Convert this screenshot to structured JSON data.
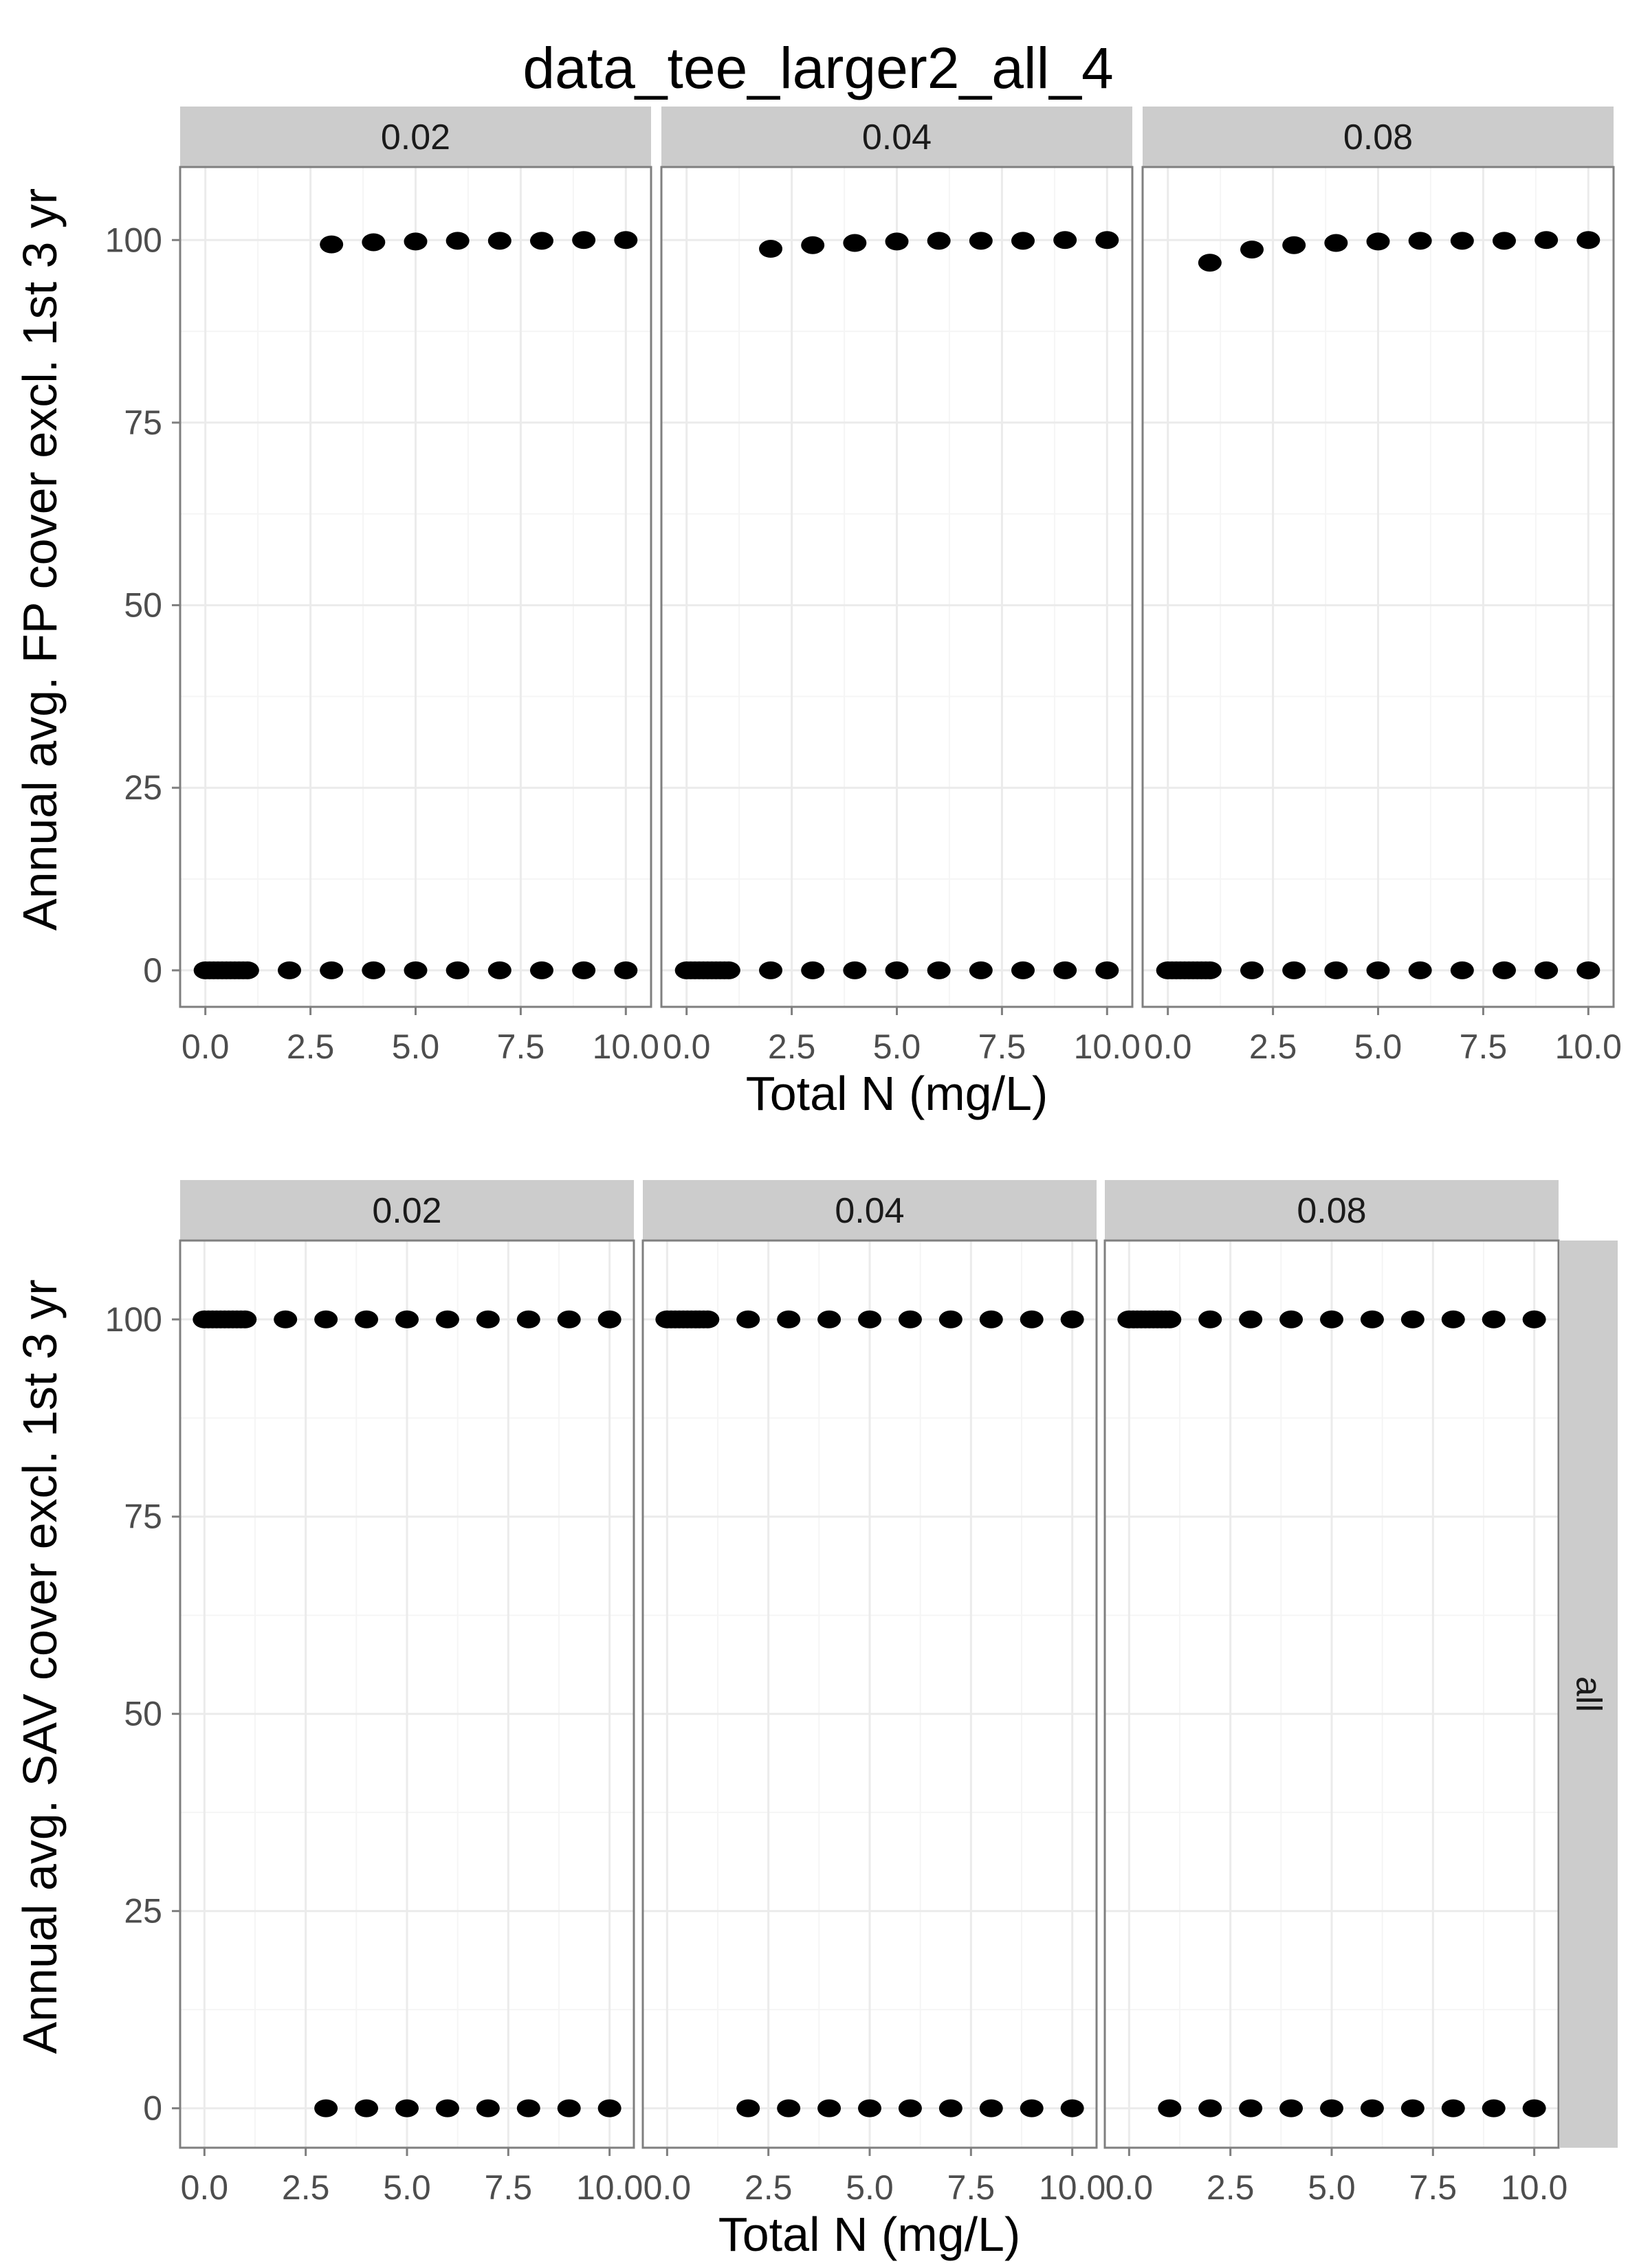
{
  "title": "data_tee_larger2_all_4",
  "colors": {
    "panel_bg": "#ffffff",
    "grid_major": "#ebebeb",
    "grid_minor": "#f5f5f5",
    "strip_bg": "#cccccc",
    "panel_border": "#7f7f7f",
    "point": "#000000",
    "tick_text": "#4d4d4d"
  },
  "chart_data": [
    {
      "type": "scatter",
      "title": "data_tee_larger2_all_4",
      "xlabel": "Total N (mg/L)",
      "ylabel": "Annual avg. FP cover excl. 1st 3 yr",
      "xlim": [
        -0.6,
        10.6
      ],
      "ylim": [
        -5,
        110
      ],
      "x_ticks": [
        "0.0",
        "2.5",
        "5.0",
        "7.5",
        "10.0"
      ],
      "x_tick_values": [
        0,
        2.5,
        5,
        7.5,
        10
      ],
      "y_ticks": [
        "0",
        "25",
        "50",
        "75",
        "100"
      ],
      "y_tick_values": [
        0,
        25,
        50,
        75,
        100
      ],
      "facets": [
        "0.02",
        "0.04",
        "0.08"
      ],
      "row_strip": "",
      "grid": true,
      "series": [
        {
          "facet": "0.02",
          "points": [
            [
              0,
              0
            ],
            [
              0.1,
              0
            ],
            [
              0.2,
              0
            ],
            [
              0.3,
              0
            ],
            [
              0.4,
              0
            ],
            [
              0.5,
              0
            ],
            [
              0.6,
              0
            ],
            [
              0.7,
              0
            ],
            [
              0.8,
              0
            ],
            [
              0.9,
              0
            ],
            [
              1,
              0
            ],
            [
              2,
              0
            ],
            [
              3,
              0
            ],
            [
              4,
              0
            ],
            [
              5,
              0
            ],
            [
              6,
              0
            ],
            [
              7,
              0
            ],
            [
              8,
              0
            ],
            [
              9,
              0
            ],
            [
              10,
              0
            ],
            [
              3,
              99.4
            ],
            [
              4,
              99.7
            ],
            [
              5,
              99.8
            ],
            [
              6,
              99.9
            ],
            [
              7,
              99.9
            ],
            [
              8,
              99.9
            ],
            [
              9,
              100
            ],
            [
              10,
              100
            ]
          ]
        },
        {
          "facet": "0.04",
          "points": [
            [
              0,
              0
            ],
            [
              0.1,
              0
            ],
            [
              0.2,
              0
            ],
            [
              0.3,
              0
            ],
            [
              0.4,
              0
            ],
            [
              0.5,
              0
            ],
            [
              0.6,
              0
            ],
            [
              0.7,
              0
            ],
            [
              0.8,
              0
            ],
            [
              0.9,
              0
            ],
            [
              1,
              0
            ],
            [
              2,
              0
            ],
            [
              3,
              0
            ],
            [
              4,
              0
            ],
            [
              5,
              0
            ],
            [
              6,
              0
            ],
            [
              7,
              0
            ],
            [
              8,
              0
            ],
            [
              9,
              0
            ],
            [
              10,
              0
            ],
            [
              2,
              98.8
            ],
            [
              3,
              99.3
            ],
            [
              4,
              99.6
            ],
            [
              5,
              99.8
            ],
            [
              6,
              99.9
            ],
            [
              7,
              99.9
            ],
            [
              8,
              99.9
            ],
            [
              9,
              100
            ],
            [
              10,
              100
            ]
          ]
        },
        {
          "facet": "0.08",
          "points": [
            [
              0,
              0
            ],
            [
              0.1,
              0
            ],
            [
              0.2,
              0
            ],
            [
              0.3,
              0
            ],
            [
              0.4,
              0
            ],
            [
              0.5,
              0
            ],
            [
              0.6,
              0
            ],
            [
              0.7,
              0
            ],
            [
              0.8,
              0
            ],
            [
              0.9,
              0
            ],
            [
              1,
              0
            ],
            [
              2,
              0
            ],
            [
              3,
              0
            ],
            [
              4,
              0
            ],
            [
              5,
              0
            ],
            [
              6,
              0
            ],
            [
              7,
              0
            ],
            [
              8,
              0
            ],
            [
              9,
              0
            ],
            [
              10,
              0
            ],
            [
              1,
              96.9
            ],
            [
              2,
              98.7
            ],
            [
              3,
              99.3
            ],
            [
              4,
              99.6
            ],
            [
              5,
              99.8
            ],
            [
              6,
              99.9
            ],
            [
              7,
              99.9
            ],
            [
              8,
              99.9
            ],
            [
              9,
              100
            ],
            [
              10,
              100
            ]
          ]
        }
      ]
    },
    {
      "type": "scatter",
      "title": "",
      "xlabel": "Total N (mg/L)",
      "ylabel": "Annual avg. SAV cover excl. 1st 3 yr",
      "xlim": [
        -0.6,
        10.6
      ],
      "ylim": [
        -5,
        110
      ],
      "x_ticks": [
        "0.0",
        "2.5",
        "5.0",
        "7.5",
        "10.0"
      ],
      "x_tick_values": [
        0,
        2.5,
        5,
        7.5,
        10
      ],
      "y_ticks": [
        "0",
        "25",
        "50",
        "75",
        "100"
      ],
      "y_tick_values": [
        0,
        25,
        50,
        75,
        100
      ],
      "facets": [
        "0.02",
        "0.04",
        "0.08"
      ],
      "row_strip": "all",
      "grid": true,
      "series": [
        {
          "facet": "0.02",
          "points": [
            [
              0,
              100
            ],
            [
              0.1,
              100
            ],
            [
              0.2,
              100
            ],
            [
              0.3,
              100
            ],
            [
              0.4,
              100
            ],
            [
              0.5,
              100
            ],
            [
              0.6,
              100
            ],
            [
              0.7,
              100
            ],
            [
              0.8,
              100
            ],
            [
              0.9,
              100
            ],
            [
              1,
              100
            ],
            [
              2,
              100
            ],
            [
              3,
              100
            ],
            [
              4,
              100
            ],
            [
              5,
              100
            ],
            [
              6,
              100
            ],
            [
              7,
              100
            ],
            [
              8,
              100
            ],
            [
              9,
              100
            ],
            [
              10,
              100
            ],
            [
              3,
              0
            ],
            [
              4,
              0
            ],
            [
              5,
              0
            ],
            [
              6,
              0
            ],
            [
              7,
              0
            ],
            [
              8,
              0
            ],
            [
              9,
              0
            ],
            [
              10,
              0
            ]
          ]
        },
        {
          "facet": "0.04",
          "points": [
            [
              0,
              100
            ],
            [
              0.1,
              100
            ],
            [
              0.2,
              100
            ],
            [
              0.3,
              100
            ],
            [
              0.4,
              100
            ],
            [
              0.5,
              100
            ],
            [
              0.6,
              100
            ],
            [
              0.7,
              100
            ],
            [
              0.8,
              100
            ],
            [
              0.9,
              100
            ],
            [
              1,
              100
            ],
            [
              2,
              100
            ],
            [
              3,
              100
            ],
            [
              4,
              100
            ],
            [
              5,
              100
            ],
            [
              6,
              100
            ],
            [
              7,
              100
            ],
            [
              8,
              100
            ],
            [
              9,
              100
            ],
            [
              10,
              100
            ],
            [
              2,
              0
            ],
            [
              3,
              0
            ],
            [
              4,
              0
            ],
            [
              5,
              0
            ],
            [
              6,
              0
            ],
            [
              7,
              0
            ],
            [
              8,
              0
            ],
            [
              9,
              0
            ],
            [
              10,
              0
            ]
          ]
        },
        {
          "facet": "0.08",
          "points": [
            [
              0,
              100
            ],
            [
              0.1,
              100
            ],
            [
              0.2,
              100
            ],
            [
              0.3,
              100
            ],
            [
              0.4,
              100
            ],
            [
              0.5,
              100
            ],
            [
              0.6,
              100
            ],
            [
              0.7,
              100
            ],
            [
              0.8,
              100
            ],
            [
              0.9,
              100
            ],
            [
              1,
              100
            ],
            [
              2,
              100
            ],
            [
              3,
              100
            ],
            [
              4,
              100
            ],
            [
              5,
              100
            ],
            [
              6,
              100
            ],
            [
              7,
              100
            ],
            [
              8,
              100
            ],
            [
              9,
              100
            ],
            [
              10,
              100
            ],
            [
              1,
              0
            ],
            [
              2,
              0
            ],
            [
              3,
              0
            ],
            [
              4,
              0
            ],
            [
              5,
              0
            ],
            [
              6,
              0
            ],
            [
              7,
              0
            ],
            [
              8,
              0
            ],
            [
              9,
              0
            ],
            [
              10,
              0
            ]
          ]
        }
      ]
    }
  ]
}
